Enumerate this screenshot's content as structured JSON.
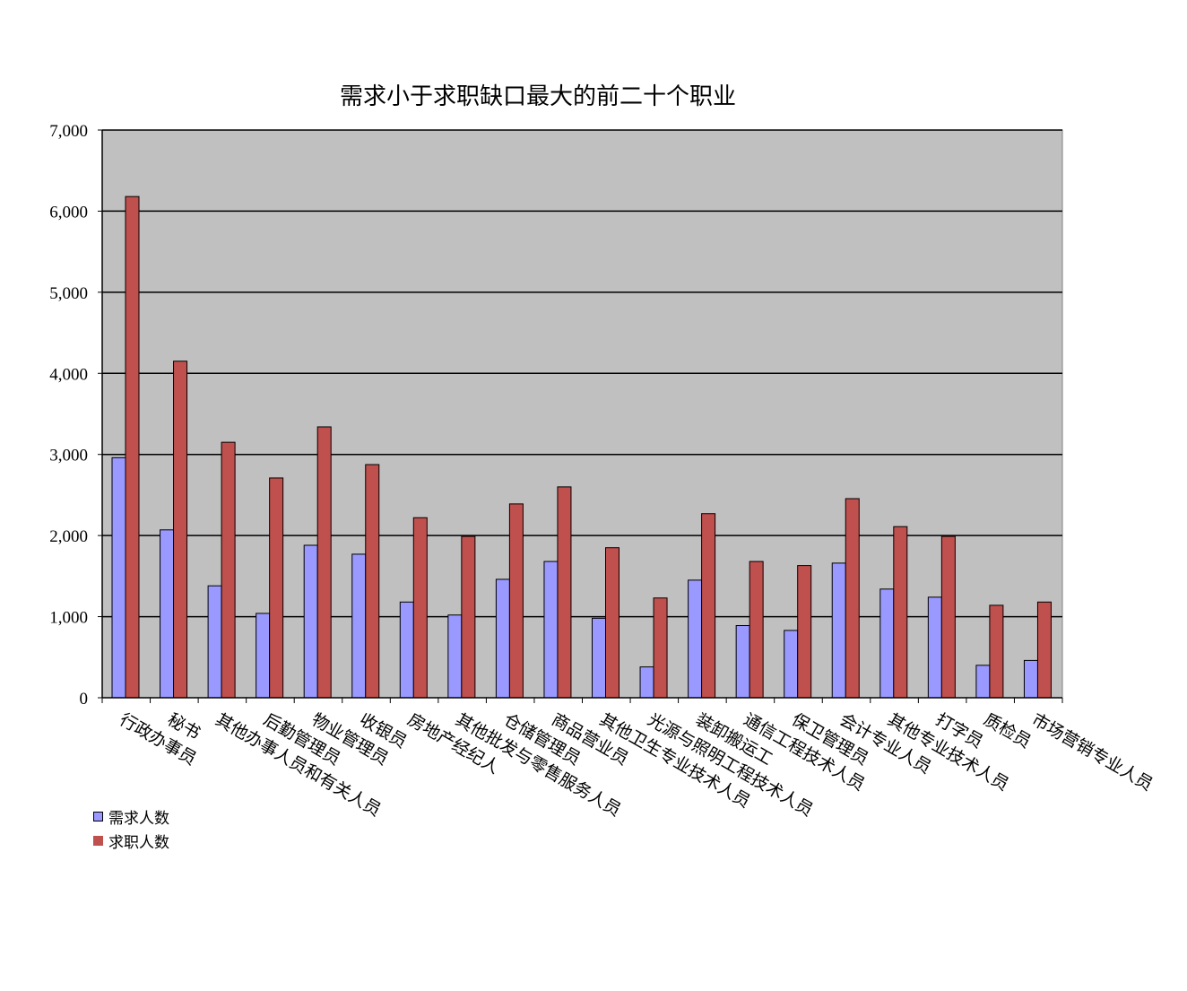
{
  "chart_data": {
    "type": "bar",
    "title": "需求小于求职缺口最大的前二十个职业",
    "xlabel": "",
    "ylabel": "",
    "ylim": [
      0,
      7000
    ],
    "yticks": [
      "0",
      "1,000",
      "2,000",
      "3,000",
      "4,000",
      "5,000",
      "6,000",
      "7,000"
    ],
    "grid": true,
    "legend_position": "bottom-left",
    "categories": [
      "行政办事员",
      "秘书",
      "其他办事人员和有关人员",
      "后勤管理员",
      "物业管理员",
      "收银员",
      "房地产经纪人",
      "其他批发与零售服务人员",
      "仓储管理员",
      "商品营业员",
      "其他卫生专业技术人员",
      "光源与照明工程技术人员",
      "装卸搬运工",
      "通信工程技术人员",
      "保卫管理员",
      "会计专业人员",
      "其他专业技术人员",
      "打字员",
      "质检员",
      "市场营销专业人员"
    ],
    "series": [
      {
        "name": "需求人数",
        "color": "#9999ff",
        "values": [
          2960,
          2070,
          1380,
          1040,
          1880,
          1770,
          1180,
          1020,
          1460,
          1680,
          980,
          380,
          1450,
          890,
          830,
          1660,
          1340,
          1240,
          400,
          460
        ]
      },
      {
        "name": "求职人数",
        "color": "#c0504d",
        "values": [
          6180,
          4150,
          3150,
          2710,
          3340,
          2875,
          2220,
          1990,
          2390,
          2600,
          1850,
          1230,
          2270,
          1680,
          1630,
          2455,
          2110,
          1990,
          1140,
          1180
        ]
      }
    ],
    "plot_background": "#c0c0c0"
  }
}
